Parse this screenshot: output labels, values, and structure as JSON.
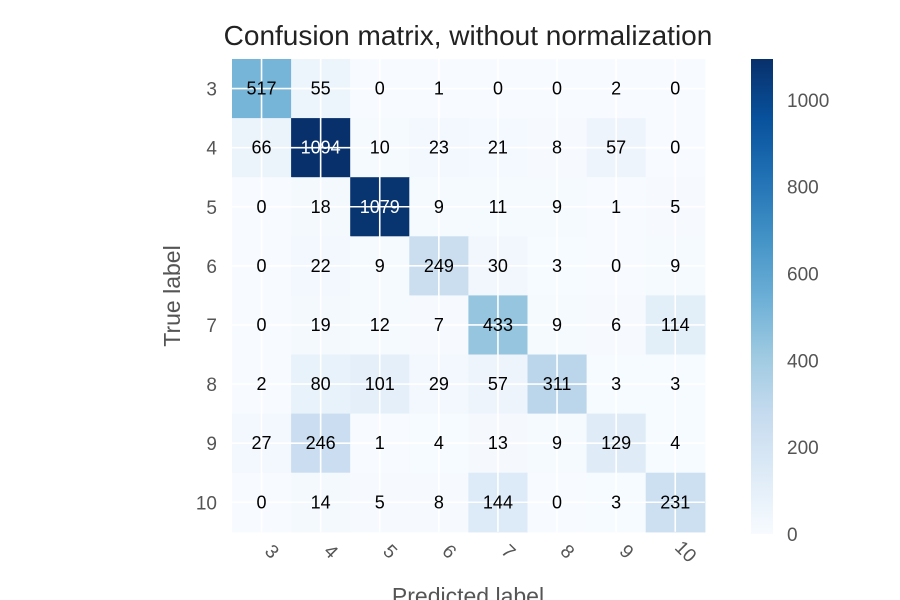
{
  "chart_data": {
    "type": "heatmap",
    "title": "Confusion matrix, without normalization",
    "xlabel": "Predicted label",
    "ylabel": "True label",
    "x_categories": [
      "3",
      "4",
      "5",
      "6",
      "7",
      "8",
      "9",
      "10"
    ],
    "y_categories": [
      "3",
      "4",
      "5",
      "6",
      "7",
      "8",
      "9",
      "10"
    ],
    "values": [
      [
        517,
        55,
        0,
        1,
        0,
        0,
        2,
        0
      ],
      [
        66,
        1094,
        10,
        23,
        21,
        8,
        57,
        0
      ],
      [
        0,
        18,
        1079,
        9,
        11,
        9,
        1,
        5
      ],
      [
        0,
        22,
        9,
        249,
        30,
        3,
        0,
        9
      ],
      [
        0,
        19,
        12,
        7,
        433,
        9,
        6,
        114
      ],
      [
        2,
        80,
        101,
        29,
        57,
        311,
        3,
        3
      ],
      [
        27,
        246,
        1,
        4,
        13,
        9,
        129,
        4
      ],
      [
        0,
        14,
        5,
        8,
        144,
        0,
        3,
        231
      ]
    ],
    "colormap": "Blues",
    "vmin": 0,
    "vmax": 1094,
    "colorbar_ticks": [
      0,
      200,
      400,
      600,
      800,
      1000
    ],
    "grid": true
  },
  "colors": {
    "low": "#f7fbff",
    "high": "#08306b",
    "text_dark": "#000000",
    "text_light": "#ffffff"
  }
}
